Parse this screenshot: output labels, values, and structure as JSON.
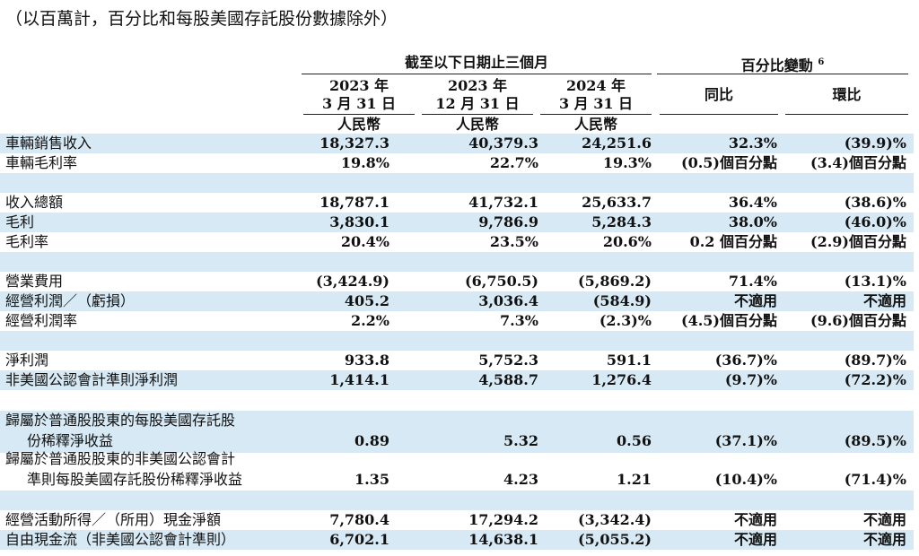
{
  "note": "（以百萬計，百分比和每股美國存託股份數據除外）",
  "header": {
    "period_group": "截至以下日期止三個月",
    "change_group": "百分比變動",
    "change_footnote": "6",
    "columns": [
      {
        "year": "2023 年",
        "date": "3 月 31 日",
        "currency": "人民幣"
      },
      {
        "year": "2023 年",
        "date": "12 月 31 日",
        "currency": "人民幣"
      },
      {
        "year": "2024 年",
        "date": "3 月 31 日",
        "currency": "人民幣"
      }
    ],
    "yoy": "同比",
    "qoq": "環比"
  },
  "rows": [
    {
      "label": "車輛銷售收入",
      "values": [
        "18,327.3",
        "40,379.3",
        "24,251.6",
        "32.3%",
        "(39.9)%"
      ]
    },
    {
      "label": "車輛毛利率",
      "values": [
        "19.8%",
        "22.7%",
        "19.3%",
        "(0.5)個百分點",
        "(3.4)個百分點"
      ]
    },
    {
      "label": "收入總額",
      "values": [
        "18,787.1",
        "41,732.1",
        "25,633.7",
        "36.4%",
        "(38.6)%"
      ]
    },
    {
      "label": "毛利",
      "values": [
        "3,830.1",
        "9,786.9",
        "5,284.3",
        "38.0%",
        "(46.0)%"
      ]
    },
    {
      "label": "毛利率",
      "values": [
        "20.4%",
        "23.5%",
        "20.6%",
        "0.2 個百分點",
        "(2.9)個百分點"
      ]
    },
    {
      "label": "營業費用",
      "values": [
        "(3,424.9)",
        "(6,750.5)",
        "(5,869.2)",
        "71.4%",
        "(13.1)%"
      ]
    },
    {
      "label": "經營利潤／（虧損）",
      "values": [
        "405.2",
        "3,036.4",
        "(584.9)",
        "不適用",
        "不適用"
      ]
    },
    {
      "label": "經營利潤率",
      "values": [
        "2.2%",
        "7.3%",
        "(2.3)%",
        "(4.5)個百分點",
        "(9.6)個百分點"
      ]
    },
    {
      "label": "淨利潤",
      "values": [
        "933.8",
        "5,752.3",
        "591.1",
        "(36.7)%",
        "(89.7)%"
      ]
    },
    {
      "label": "非美國公認會計準則淨利潤",
      "values": [
        "1,414.1",
        "4,588.7",
        "1,276.4",
        "(9.7)%",
        "(72.2)%"
      ]
    },
    {
      "label": "歸屬於普通股股東的每股美國存託股",
      "label2": "份稀釋淨收益",
      "values": [
        "0.89",
        "5.32",
        "0.56",
        "(37.1)%",
        "(89.5)%"
      ]
    },
    {
      "label": "歸屬於普通股股東的非美國公認會計",
      "label2": "準則每股美國存託股份稀釋淨收益",
      "values": [
        "1.35",
        "4.23",
        "1.21",
        "(10.4)%",
        "(71.4)%"
      ]
    },
    {
      "label": "經營活動所得／（所用）現金淨額",
      "values": [
        "7,780.4",
        "17,294.2",
        "(3,342.4)",
        "不適用",
        "不適用"
      ]
    },
    {
      "label": "自由現金流（非美國公認會計準則）",
      "values": [
        "6,702.1",
        "14,638.1",
        "(5,055.2)",
        "不適用",
        "不適用"
      ]
    }
  ],
  "colors": {
    "band": "#d6e9f4",
    "text": "#111111"
  }
}
